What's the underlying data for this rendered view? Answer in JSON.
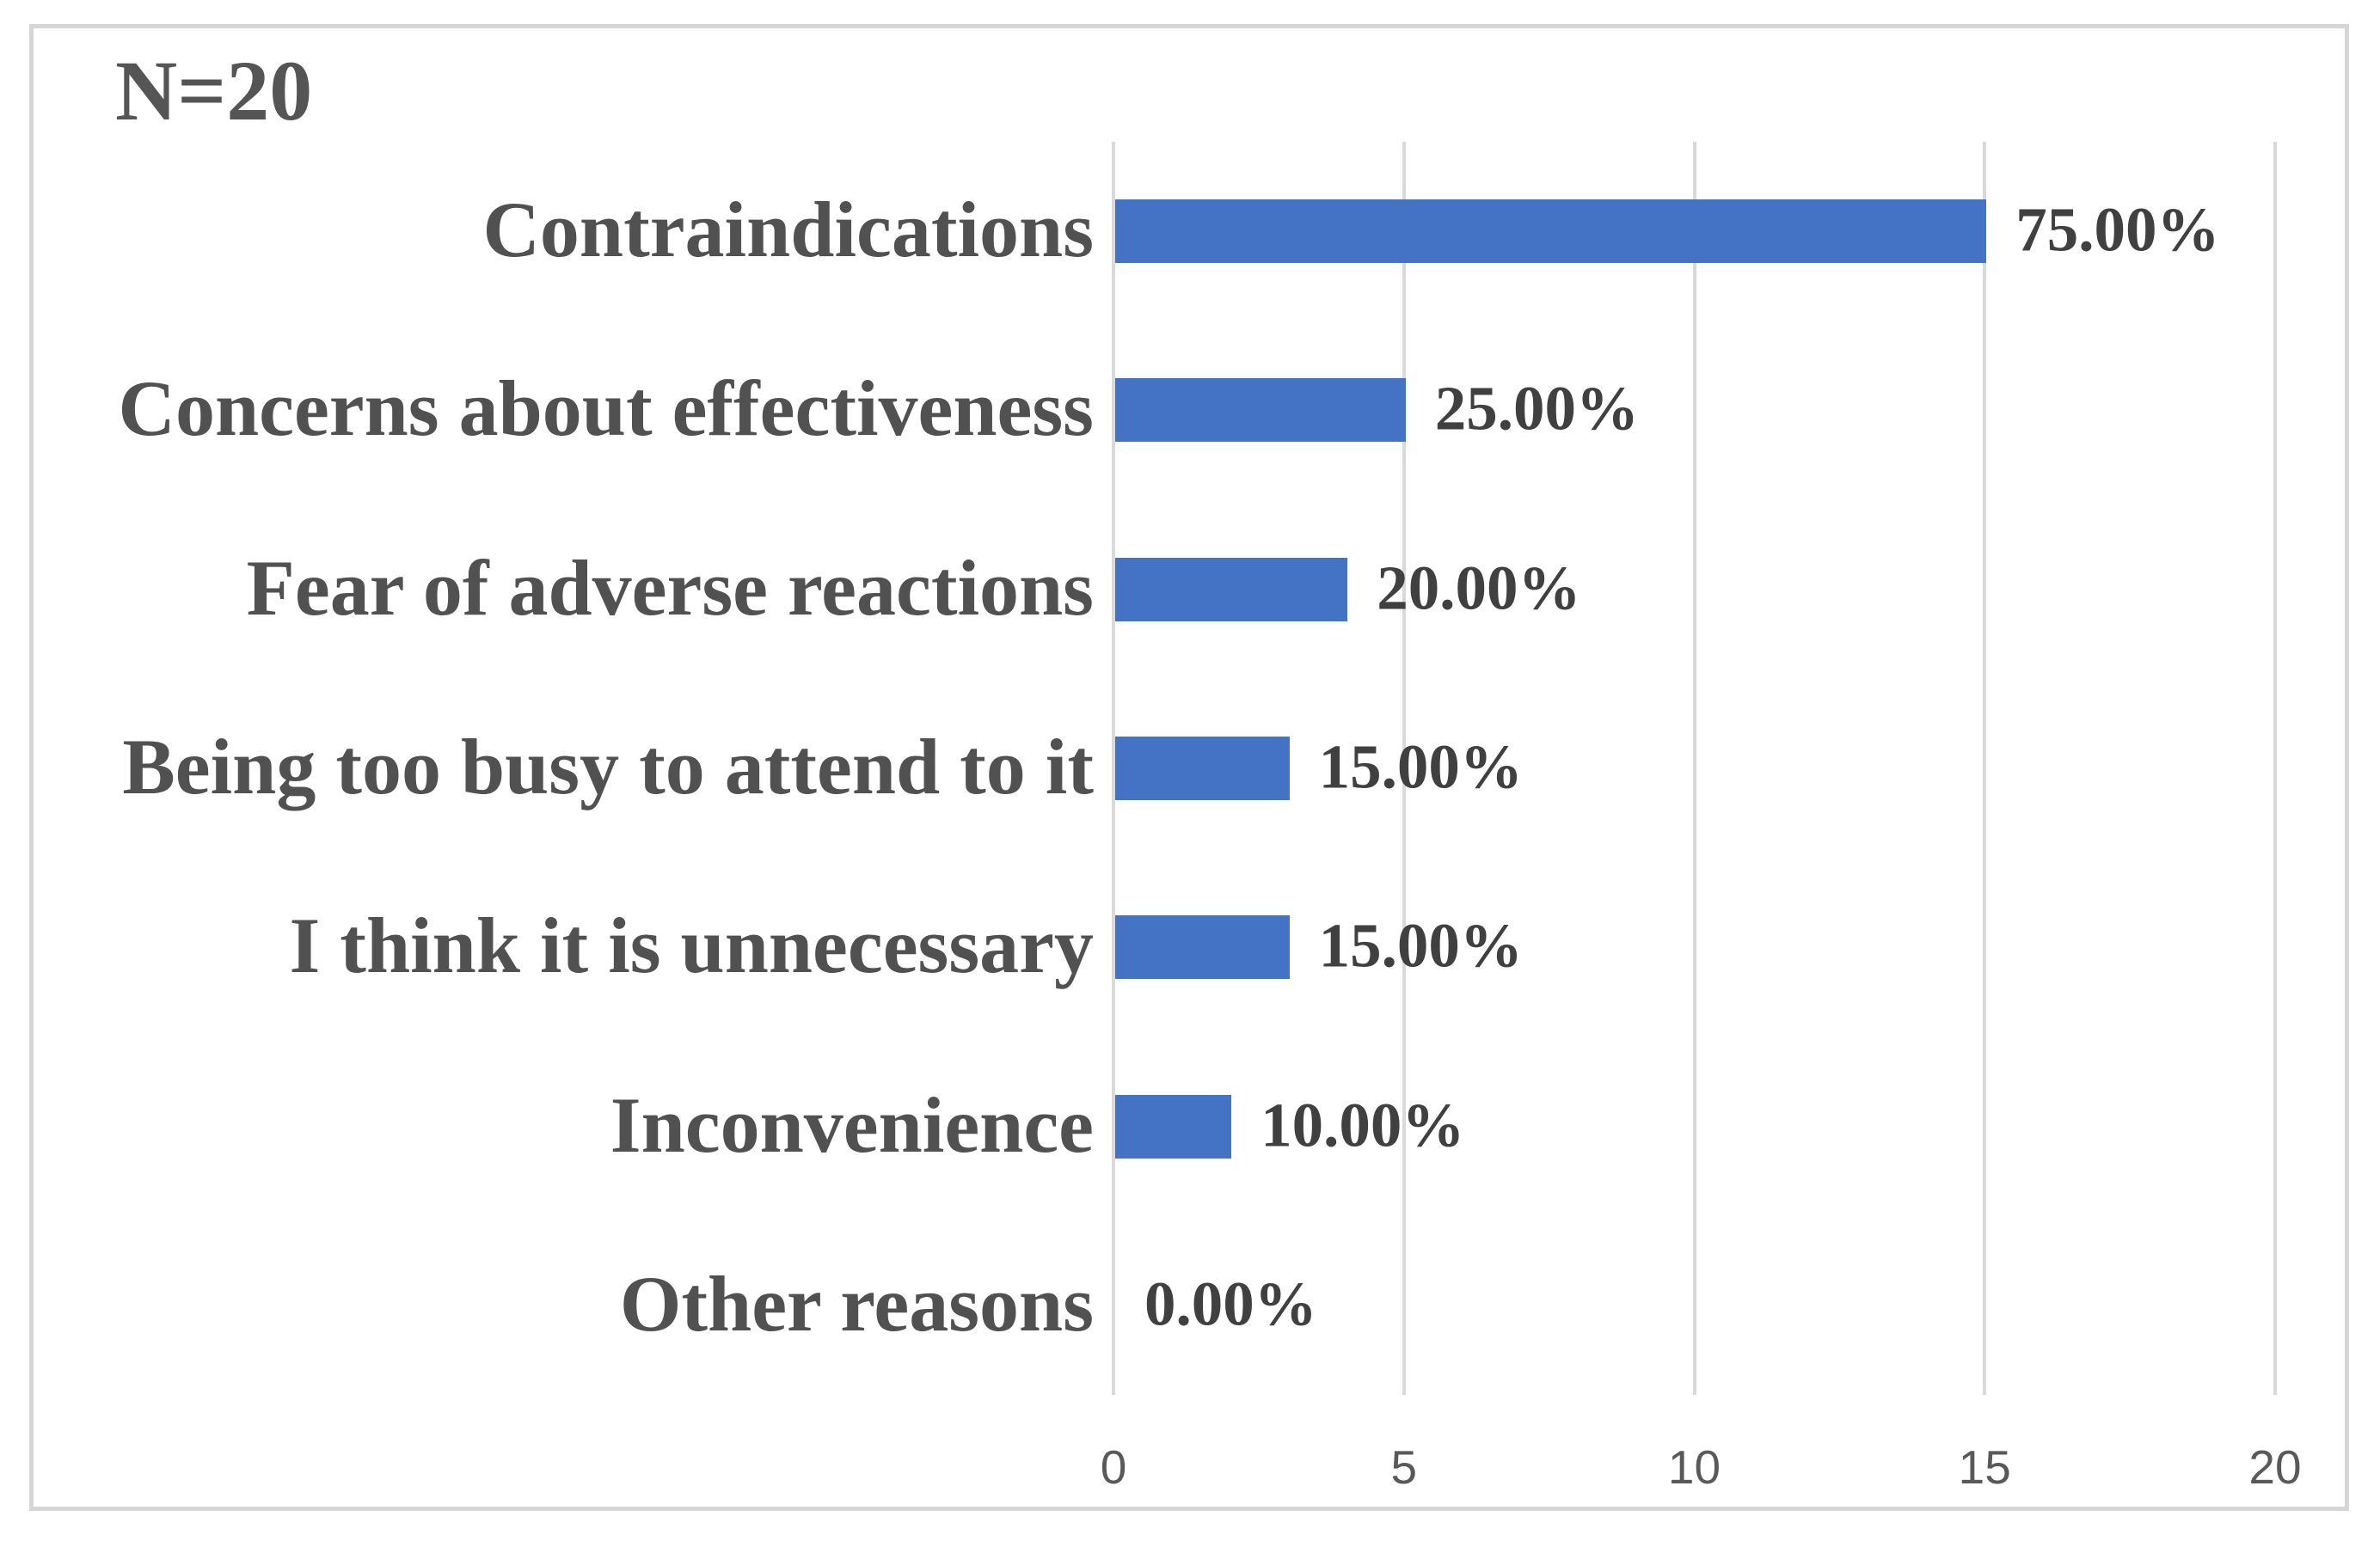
{
  "figure": {
    "n_label": "N=20"
  },
  "chart_data": {
    "type": "bar",
    "orientation": "horizontal",
    "title": "",
    "xlabel": "",
    "ylabel": "",
    "annotation": "N=20",
    "categories": [
      "Contraindications",
      "Concerns about effectiveness",
      "Fear of adverse reactions",
      "Being too busy to attend to it",
      "I think it is unnecessary",
      "Inconvenience",
      "Other reasons"
    ],
    "values": [
      15,
      5,
      4,
      3,
      3,
      2,
      0
    ],
    "data_labels": [
      "75.00%",
      "25.00%",
      "20.00%",
      "15.00%",
      "15.00%",
      "10.00%",
      "0.00%"
    ],
    "x_ticks": [
      "0",
      "5",
      "10",
      "15",
      "20"
    ],
    "x_tick_values": [
      0,
      5,
      10,
      15,
      20
    ],
    "xlim": [
      0,
      20
    ],
    "grid": "vertical",
    "legend_position": "none",
    "bar_color": "#4472C4",
    "gridline_color": "#D9D9D9",
    "label_color": "#515151",
    "data_label_color": "#404040",
    "tick_color": "#595959",
    "border_color": "#D6D6D6"
  }
}
